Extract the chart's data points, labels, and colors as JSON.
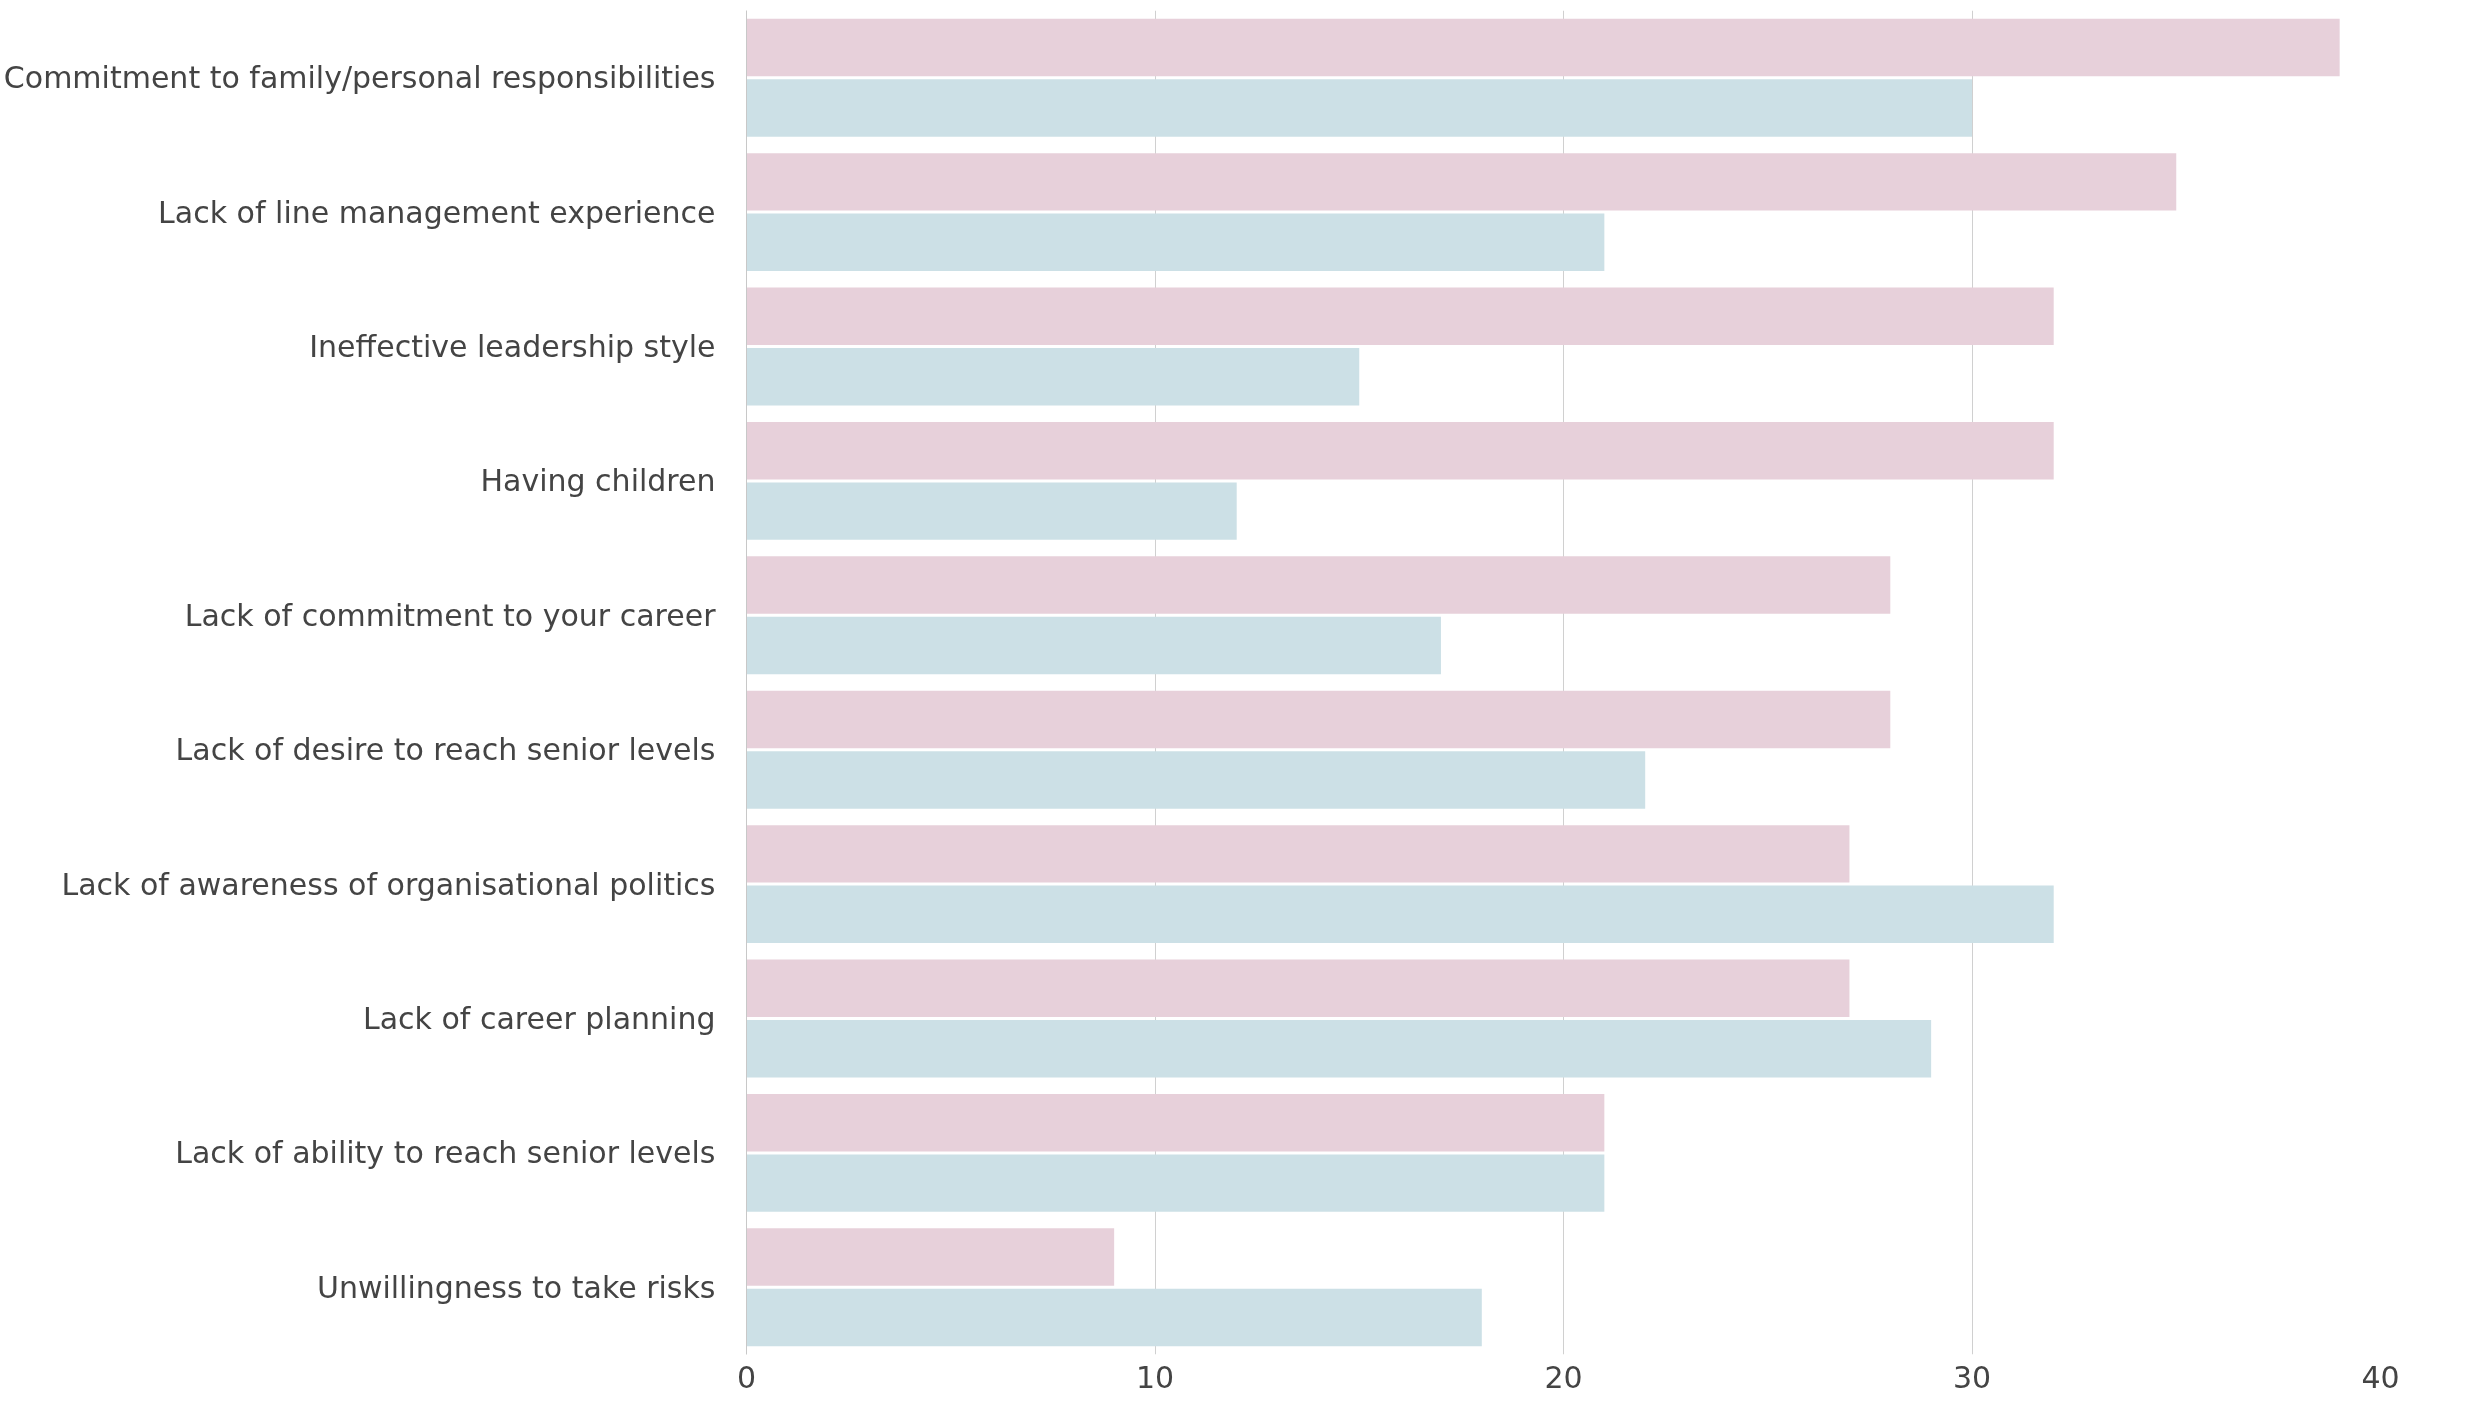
{
  "chart_data": {
    "type": "bar",
    "orientation": "horizontal",
    "categories": [
      "Commitment to family/personal responsibilities",
      "Lack of line management experience",
      "Ineffective leadership style",
      "Having children",
      "Lack of commitment to your career",
      "Lack of desire to reach senior levels",
      "Lack of awareness of organisational politics",
      "Lack of career planning",
      "Lack of ability to reach senior levels",
      "Unwillingness to take risks"
    ],
    "series": [
      {
        "color": "#e7d0da",
        "values": [
          39,
          35,
          32,
          32,
          28,
          28,
          27,
          27,
          21,
          9
        ]
      },
      {
        "color": "#cce0e6",
        "values": [
          30,
          21,
          15,
          12,
          17,
          22,
          32,
          29,
          21,
          18
        ]
      }
    ],
    "xlim": [
      0,
      40
    ],
    "xticks": [
      0,
      10,
      20,
      30,
      40
    ],
    "grid": "x"
  }
}
